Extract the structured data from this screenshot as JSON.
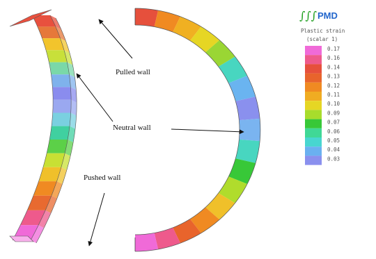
{
  "annotations": {
    "pulled": "Pulled wall",
    "neutral": "Neutral wall",
    "pushed": "Pushed wall"
  },
  "logo": {
    "glyphs": "∫∫∫",
    "text": "PMD"
  },
  "legend": {
    "title": "Plastic strain",
    "subtitle": "(scalar 1)",
    "levels": [
      {
        "label": "0.17",
        "color": "#f06ad8"
      },
      {
        "label": "0.16",
        "color": "#ee5a8c"
      },
      {
        "label": "0.14",
        "color": "#e6503c"
      },
      {
        "label": "0.13",
        "color": "#e8642c"
      },
      {
        "label": "0.12",
        "color": "#f08a22"
      },
      {
        "label": "0.11",
        "color": "#f0ac22"
      },
      {
        "label": "0.10",
        "color": "#e6d624"
      },
      {
        "label": "0.09",
        "color": "#a8dc2c"
      },
      {
        "label": "0.07",
        "color": "#38c838"
      },
      {
        "label": "0.06",
        "color": "#40d896"
      },
      {
        "label": "0.05",
        "color": "#48d6d0"
      },
      {
        "label": "0.04",
        "color": "#6ab0f0"
      },
      {
        "label": "0.03",
        "color": "#8a90ee"
      }
    ]
  },
  "left_band_colors": [
    "#e8503e",
    "#e6783a",
    "#f2c42c",
    "#c8e03a",
    "#7ad8a8",
    "#7fb2ec",
    "#8a8cee",
    "#9aa8f0",
    "#7ad0e0",
    "#40d0a0",
    "#5cd048",
    "#c8e034",
    "#f0c02a",
    "#f08a22",
    "#e86a30",
    "#ee5a8c",
    "#f06ad8"
  ],
  "right_band_colors": [
    "#e6503c",
    "#f08a22",
    "#f0b022",
    "#e6d624",
    "#9ad634",
    "#48d6c0",
    "#6ab4f0",
    "#8a90ee",
    "#7ab4f0",
    "#48d6c0",
    "#38c838",
    "#b0dc2c",
    "#f0c02a",
    "#f08a22",
    "#e8642c",
    "#ee5a8c",
    "#f06ad8"
  ]
}
